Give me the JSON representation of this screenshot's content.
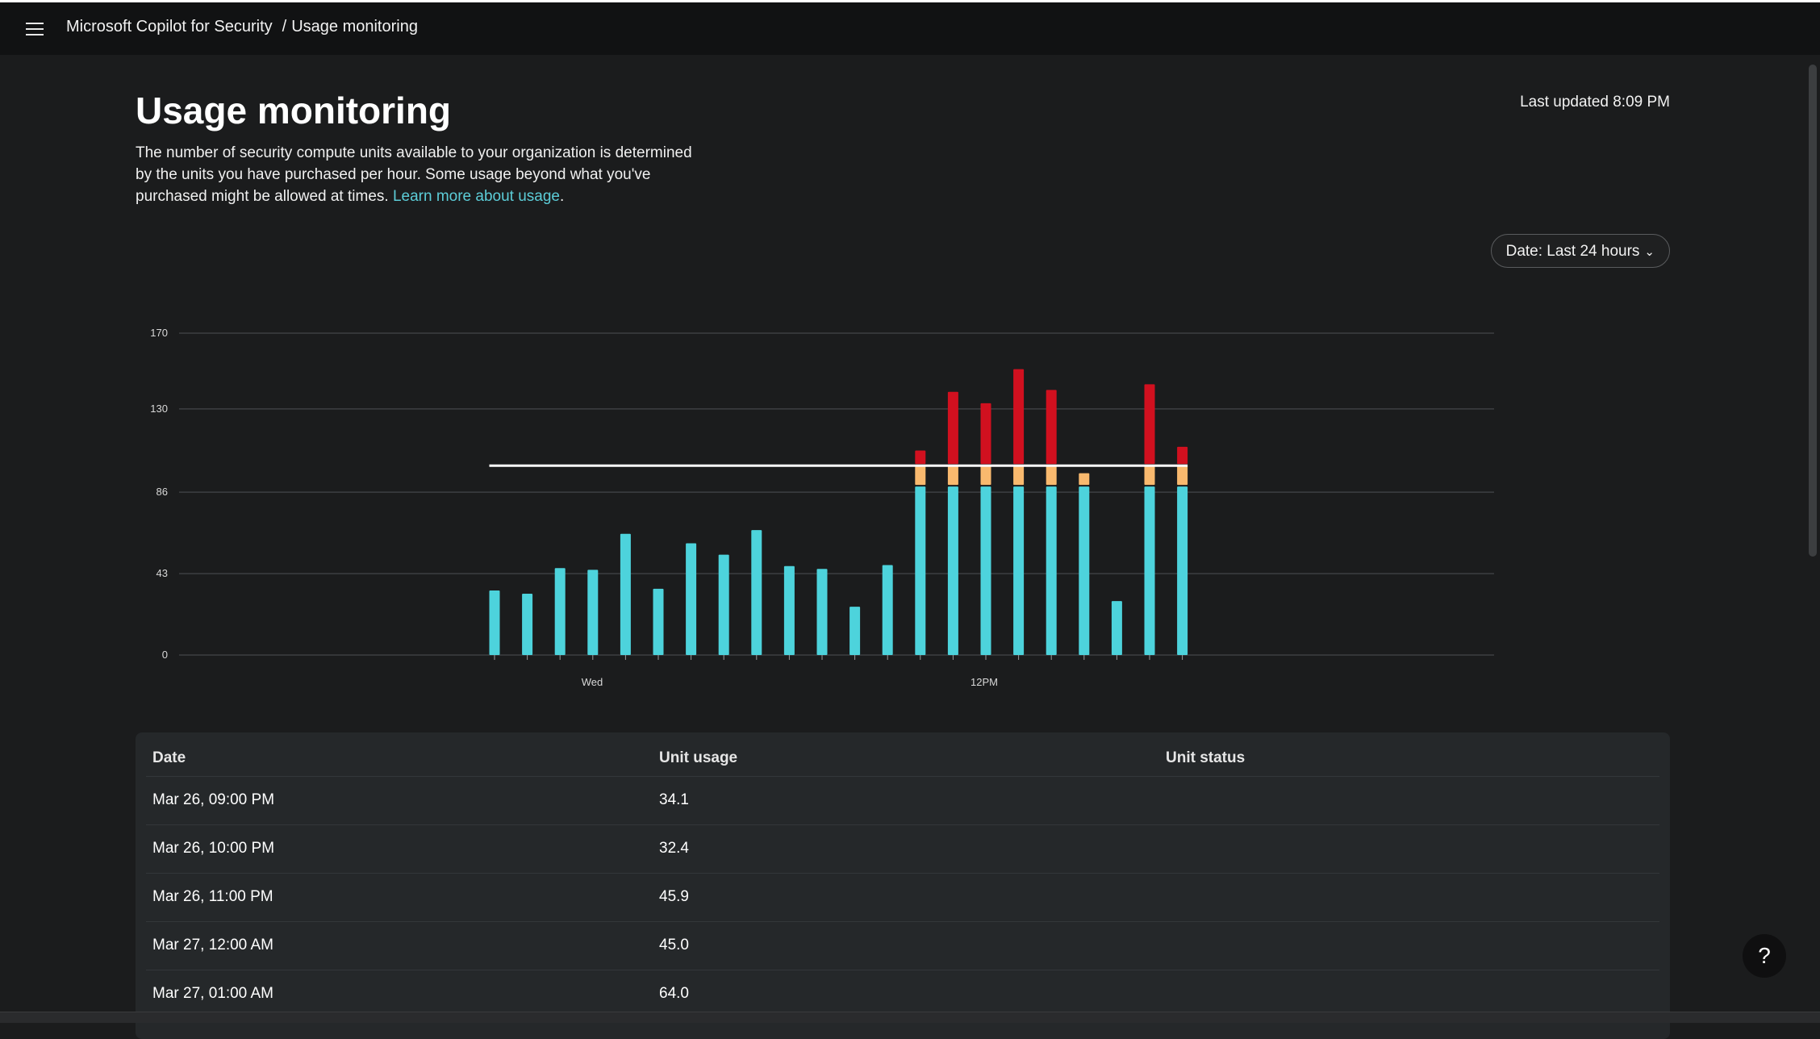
{
  "header": {
    "app_name": "Microsoft Copilot for Security",
    "separator": "/",
    "page": "Usage monitoring"
  },
  "page": {
    "title": "Usage monitoring",
    "last_updated": "Last updated 8:09 PM",
    "description": "The number of security compute units available to your organization is determined by the units you have purchased per hour. Some usage beyond what you've purchased might be allowed at times.",
    "learn_more": "Learn more about usage",
    "learn_more_suffix": ".",
    "date_filter": "Date: Last 24 hours"
  },
  "chart_data": {
    "type": "bar",
    "stacked": true,
    "grid": true,
    "ylim": [
      0,
      170
    ],
    "yticks": [
      "0",
      "43",
      "86",
      "130",
      "170"
    ],
    "xticks": [
      {
        "label": "Wed",
        "index": 3
      },
      {
        "label": "12PM",
        "index": 15
      }
    ],
    "threshold": 100,
    "colors": {
      "base": "#4dd3dc",
      "overage": "#f9b96e",
      "exceeded": "#d1101f",
      "threshold": "#ffffff",
      "grid": "#3c3f42",
      "tick": "#d8d8d8"
    },
    "series": [
      {
        "key": "base",
        "values": [
          34.1,
          32.4,
          45.9,
          45.0,
          64.0,
          35,
          59,
          53,
          66,
          47,
          45.5,
          25.5,
          47.5,
          89,
          89,
          89,
          89,
          89,
          89,
          28.5,
          89,
          89
        ]
      },
      {
        "key": "overage",
        "values": [
          0,
          0,
          0,
          0,
          0,
          0,
          0,
          0,
          0,
          0,
          0,
          0,
          0,
          11,
          11,
          11,
          11,
          11,
          7,
          0,
          11,
          11
        ]
      },
      {
        "key": "exceeded",
        "values": [
          0,
          0,
          0,
          0,
          0,
          0,
          0,
          0,
          0,
          0,
          0,
          0,
          0,
          8,
          39,
          33,
          51,
          40,
          0,
          0,
          43,
          10
        ]
      }
    ]
  },
  "table": {
    "columns": [
      "Date",
      "Unit usage",
      "Unit status"
    ],
    "rows": [
      {
        "date": "Mar 26, 09:00 PM",
        "usage": "34.1",
        "status": ""
      },
      {
        "date": "Mar 26, 10:00 PM",
        "usage": "32.4",
        "status": ""
      },
      {
        "date": "Mar 26, 11:00 PM",
        "usage": "45.9",
        "status": ""
      },
      {
        "date": "Mar 27, 12:00 AM",
        "usage": "45.0",
        "status": ""
      },
      {
        "date": "Mar 27, 01:00 AM",
        "usage": "64.0",
        "status": ""
      }
    ]
  },
  "help": {
    "label": "?"
  },
  "icons": {
    "menu": "hamburger-menu-icon",
    "date_chevron": "chevron-down-icon"
  }
}
